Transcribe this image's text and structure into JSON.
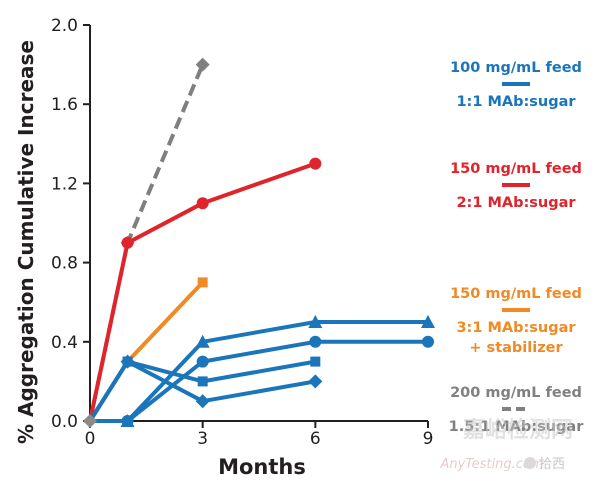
{
  "chart_data": {
    "type": "line",
    "xlabel": "Months",
    "ylabel": "% Aggregation Cumulative Increase",
    "xlim": [
      0,
      9
    ],
    "ylim": [
      0,
      2.0
    ],
    "xticks": [
      "0",
      "3",
      "6",
      "9"
    ],
    "yticks": [
      "0.0",
      "0.4",
      "0.8",
      "1.2",
      "1.6",
      "2.0"
    ],
    "grid": false,
    "legend_position": "right",
    "series": [
      {
        "group": "gray",
        "color": "#7f7f80",
        "dashed": true,
        "marker": "diamond",
        "x": [
          0,
          1,
          3
        ],
        "y": [
          0,
          0.9,
          1.8
        ]
      },
      {
        "group": "red",
        "color": "#e0242b",
        "dashed": false,
        "marker": "circle",
        "x": [
          0,
          1,
          3,
          6
        ],
        "y": [
          0,
          0.9,
          1.1,
          1.3
        ]
      },
      {
        "group": "orange",
        "color": "#f08a25",
        "dashed": false,
        "marker": "square",
        "x": [
          0,
          1,
          3
        ],
        "y": [
          0,
          0.3,
          0.7
        ]
      },
      {
        "group": "blue",
        "color": "#1b75bb",
        "dashed": false,
        "marker": "triangle",
        "x": [
          0,
          1,
          3,
          6,
          9
        ],
        "y": [
          0,
          0,
          0.4,
          0.5,
          0.5
        ]
      },
      {
        "group": "blue",
        "color": "#1b75bb",
        "dashed": false,
        "marker": "circle",
        "x": [
          0,
          1,
          3,
          6,
          9
        ],
        "y": [
          0,
          0,
          0.3,
          0.4,
          0.4
        ]
      },
      {
        "group": "blue",
        "color": "#1b75bb",
        "dashed": false,
        "marker": "square",
        "x": [
          0,
          1,
          3,
          6
        ],
        "y": [
          0,
          0.3,
          0.2,
          0.3
        ]
      },
      {
        "group": "blue",
        "color": "#1b75bb",
        "dashed": false,
        "marker": "diamond",
        "x": [
          0,
          1,
          3,
          6
        ],
        "y": [
          0,
          0.3,
          0.1,
          0.2
        ]
      }
    ],
    "legend": [
      {
        "line1": "100 mg/mL feed",
        "line2": "1:1 MAb:sugar",
        "line3": "",
        "color": "#1b75bb",
        "dashed": false
      },
      {
        "line1": "150 mg/mL feed",
        "line2": "2:1 MAb:sugar",
        "line3": "",
        "color": "#e0242b",
        "dashed": false
      },
      {
        "line1": "150 mg/mL feed",
        "line2": "3:1 MAb:sugar",
        "line3": "+ stabilizer",
        "color": "#f08a25",
        "dashed": false
      },
      {
        "line1": "200 mg/mL feed",
        "line2": "1.5:1 MAb:sugar",
        "line3": "",
        "color": "#808080",
        "dashed": true
      }
    ]
  },
  "watermark": {
    "brand_cn": "嘉峪检测网",
    "brand_en": "AnyTesting.com",
    "social": "拾西"
  }
}
